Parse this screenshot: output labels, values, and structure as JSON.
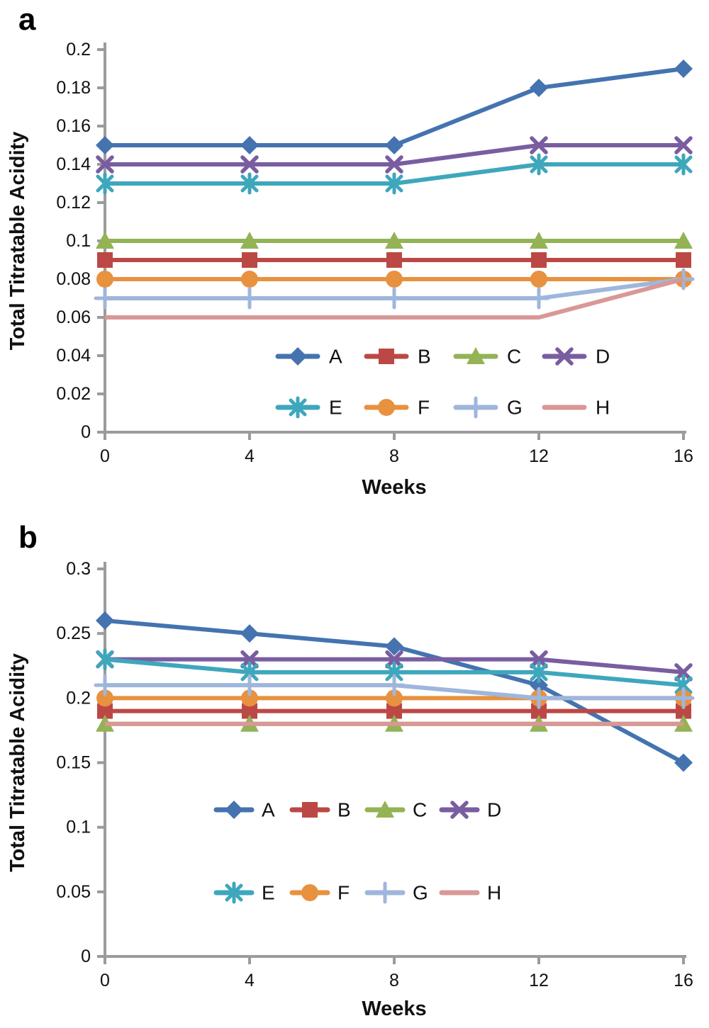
{
  "figure": {
    "background": "#ffffff",
    "axis_color": "#9b9b9b",
    "text_color": "#111111"
  },
  "series_styles": [
    {
      "name": "A",
      "color": "#4473B0",
      "marker": "diamond"
    },
    {
      "name": "B",
      "color": "#BC4845",
      "marker": "square"
    },
    {
      "name": "C",
      "color": "#93B355",
      "marker": "triangle"
    },
    {
      "name": "D",
      "color": "#7A5DA0",
      "marker": "x"
    },
    {
      "name": "E",
      "color": "#3EA7BC",
      "marker": "asterisk"
    },
    {
      "name": "F",
      "color": "#E8913F",
      "marker": "circle"
    },
    {
      "name": "G",
      "color": "#9FB6DC",
      "marker": "plus"
    },
    {
      "name": "H",
      "color": "#D89896",
      "marker": "none"
    }
  ],
  "chart_data": [
    {
      "type": "line",
      "panel_label": "a",
      "xlabel": "Weeks",
      "ylabel": "Total Titratable Acidity",
      "x": [
        0,
        4,
        8,
        12,
        16
      ],
      "xtick_labels": [
        "0",
        "4",
        "8",
        "12",
        "16"
      ],
      "ylim": [
        0,
        0.2
      ],
      "ytick_step": 0.02,
      "ytick_labels": [
        "0",
        "0.02",
        "0.04",
        "0.06",
        "0.08",
        "0.1",
        "0.12",
        "0.14",
        "0.16",
        "0.18",
        "0.2"
      ],
      "grid": false,
      "legend_position": "inside-lower-center",
      "legend_rows": [
        [
          "A",
          "B",
          "C",
          "D"
        ],
        [
          "E",
          "F",
          "G",
          "H"
        ]
      ],
      "series": [
        {
          "name": "A",
          "values": [
            0.15,
            0.15,
            0.15,
            0.18,
            0.19
          ]
        },
        {
          "name": "B",
          "values": [
            0.09,
            0.09,
            0.09,
            0.09,
            0.09
          ]
        },
        {
          "name": "C",
          "values": [
            0.1,
            0.1,
            0.1,
            0.1,
            0.1
          ]
        },
        {
          "name": "D",
          "values": [
            0.14,
            0.14,
            0.14,
            0.15,
            0.15
          ]
        },
        {
          "name": "E",
          "values": [
            0.13,
            0.13,
            0.13,
            0.14,
            0.14
          ]
        },
        {
          "name": "F",
          "values": [
            0.08,
            0.08,
            0.08,
            0.08,
            0.08
          ]
        },
        {
          "name": "G",
          "values": [
            0.07,
            0.07,
            0.07,
            0.07,
            0.08
          ]
        },
        {
          "name": "H",
          "values": [
            0.06,
            0.06,
            0.06,
            0.06,
            0.08
          ]
        }
      ]
    },
    {
      "type": "line",
      "panel_label": "b",
      "xlabel": "Weeks",
      "ylabel": "Total Titratable Acidity",
      "x": [
        0,
        4,
        8,
        12,
        16
      ],
      "xtick_labels": [
        "0",
        "4",
        "8",
        "12",
        "16"
      ],
      "ylim": [
        0,
        0.3
      ],
      "ytick_step": 0.05,
      "ytick_labels": [
        "0",
        "0.05",
        "0.1",
        "0.15",
        "0.2",
        "0.25",
        "0.3"
      ],
      "grid": false,
      "legend_position": "inside-lower-center",
      "legend_rows": [
        [
          "A",
          "B",
          "C",
          "D"
        ],
        [
          "E",
          "F",
          "G",
          "H"
        ]
      ],
      "series": [
        {
          "name": "A",
          "values": [
            0.26,
            0.25,
            0.24,
            0.21,
            0.15
          ]
        },
        {
          "name": "B",
          "values": [
            0.19,
            0.19,
            0.19,
            0.19,
            0.19
          ]
        },
        {
          "name": "C",
          "values": [
            0.18,
            0.18,
            0.18,
            0.18,
            0.18
          ]
        },
        {
          "name": "D",
          "values": [
            0.23,
            0.23,
            0.23,
            0.23,
            0.22
          ]
        },
        {
          "name": "E",
          "values": [
            0.23,
            0.22,
            0.22,
            0.22,
            0.21
          ]
        },
        {
          "name": "F",
          "values": [
            0.2,
            0.2,
            0.2,
            0.2,
            0.2
          ]
        },
        {
          "name": "G",
          "values": [
            0.21,
            0.21,
            0.21,
            0.2,
            0.2
          ]
        },
        {
          "name": "H",
          "values": [
            0.18,
            0.18,
            0.18,
            0.18,
            0.18
          ]
        }
      ]
    }
  ]
}
